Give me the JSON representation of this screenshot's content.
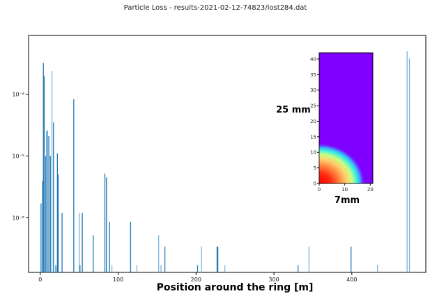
{
  "chart_data": [
    {
      "type": "bar",
      "title": "Particle Loss - results-2021-02-12-74823/lost284.dat",
      "xlabel": "Position around the ring [m]",
      "ylabel": "",
      "yscale": "log",
      "xlim": [
        -15,
        495
      ],
      "ylim": [
        1.3e-07,
        0.0009
      ],
      "xticks": [
        0,
        100,
        200,
        300,
        400
      ],
      "xtick_labels": [
        "0",
        "100",
        "200",
        "300",
        "400"
      ],
      "yticks": [
        1e-06,
        1e-05,
        0.0001
      ],
      "ytick_labels": [
        "10⁻⁶",
        "10⁻⁵",
        "10⁻⁴"
      ],
      "grid": false,
      "colors": {
        "bar_dark": "#1f77b4",
        "bar_light": "#7ab4d9",
        "axis": "#000000"
      },
      "series": [
        {
          "color": "#1f77b4",
          "x": [
            1,
            3,
            4,
            5,
            7,
            9,
            11,
            13,
            17,
            20,
            22,
            23,
            28,
            43,
            51,
            54,
            68,
            83,
            85,
            89,
            116,
            160,
            202,
            227,
            228,
            331,
            399
          ],
          "y": [
            1.7e-06,
            3.9e-06,
            0.00032,
            0.0002,
            1e-05,
            2.6e-05,
            2.1e-05,
            1e-05,
            3.5e-05,
            1.7e-07,
            1.1e-05,
            5e-06,
            1.2e-06,
            8.3e-05,
            1.7e-07,
            1.2e-06,
            5.2e-07,
            5.2e-06,
            4.5e-06,
            8.6e-07,
            8.6e-07,
            3.4e-07,
            1.7e-07,
            3.4e-07,
            3.4e-07,
            1.7e-07,
            3.4e-07
          ]
        },
        {
          "color": "#7ab4d9",
          "x": [
            8,
            15,
            50,
            92,
            124,
            152,
            155,
            207,
            237,
            345,
            433,
            471,
            474
          ],
          "y": [
            2.5e-05,
            0.00024,
            1.2e-06,
            1.7e-07,
            1.7e-07,
            5.2e-07,
            1.7e-07,
            3.4e-07,
            1.7e-07,
            3.4e-07,
            1.7e-07,
            0.0005,
            0.00038
          ]
        }
      ]
    },
    {
      "type": "heatmap",
      "xlabel": "7mm",
      "ylabel": "25 mm",
      "xlim": [
        0,
        21
      ],
      "ylim": [
        0,
        42
      ],
      "xticks": [
        0,
        10,
        20
      ],
      "yticks": [
        0,
        5,
        10,
        15,
        20,
        25,
        30,
        35,
        40
      ],
      "colormap": "rainbow",
      "background_color": "#8000ff",
      "hotspot": {
        "x": 0,
        "y": 0,
        "radius_x": 18,
        "radius_y": 13
      }
    }
  ]
}
